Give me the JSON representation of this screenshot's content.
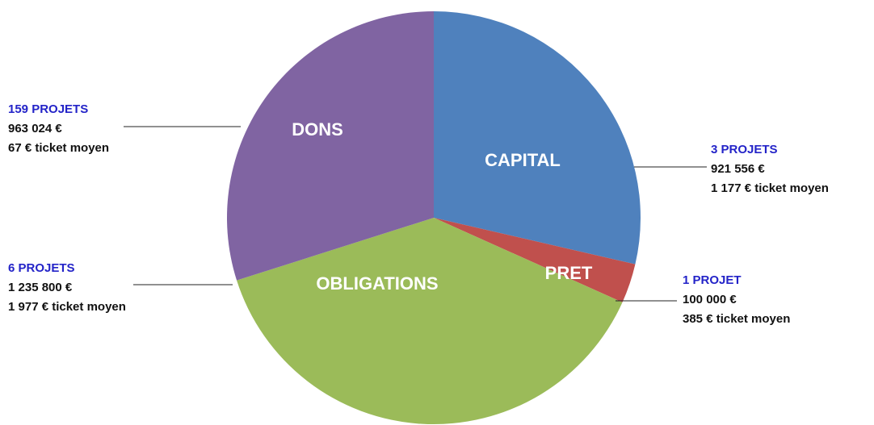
{
  "chart_data": {
    "type": "pie",
    "categories": [
      "CAPITAL",
      "PRET",
      "OBLIGATIONS",
      "DONS"
    ],
    "values": [
      921556,
      100000,
      1235800,
      963024
    ],
    "value_labels": [
      "921 556 €",
      "100 000 €",
      "1 235 800 €",
      "963 024 €"
    ],
    "projects": [
      "3 PROJETS",
      "1 PROJET",
      "6 PROJETS",
      "159 PROJETS"
    ],
    "tickets": [
      "1 177 € ticket moyen",
      "385 € ticket moyen",
      "1 977 € ticket moyen",
      "67 € ticket moyen"
    ],
    "colors": [
      "#4f81bd",
      "#c0504d",
      "#9bbb59",
      "#8064a2"
    ]
  }
}
